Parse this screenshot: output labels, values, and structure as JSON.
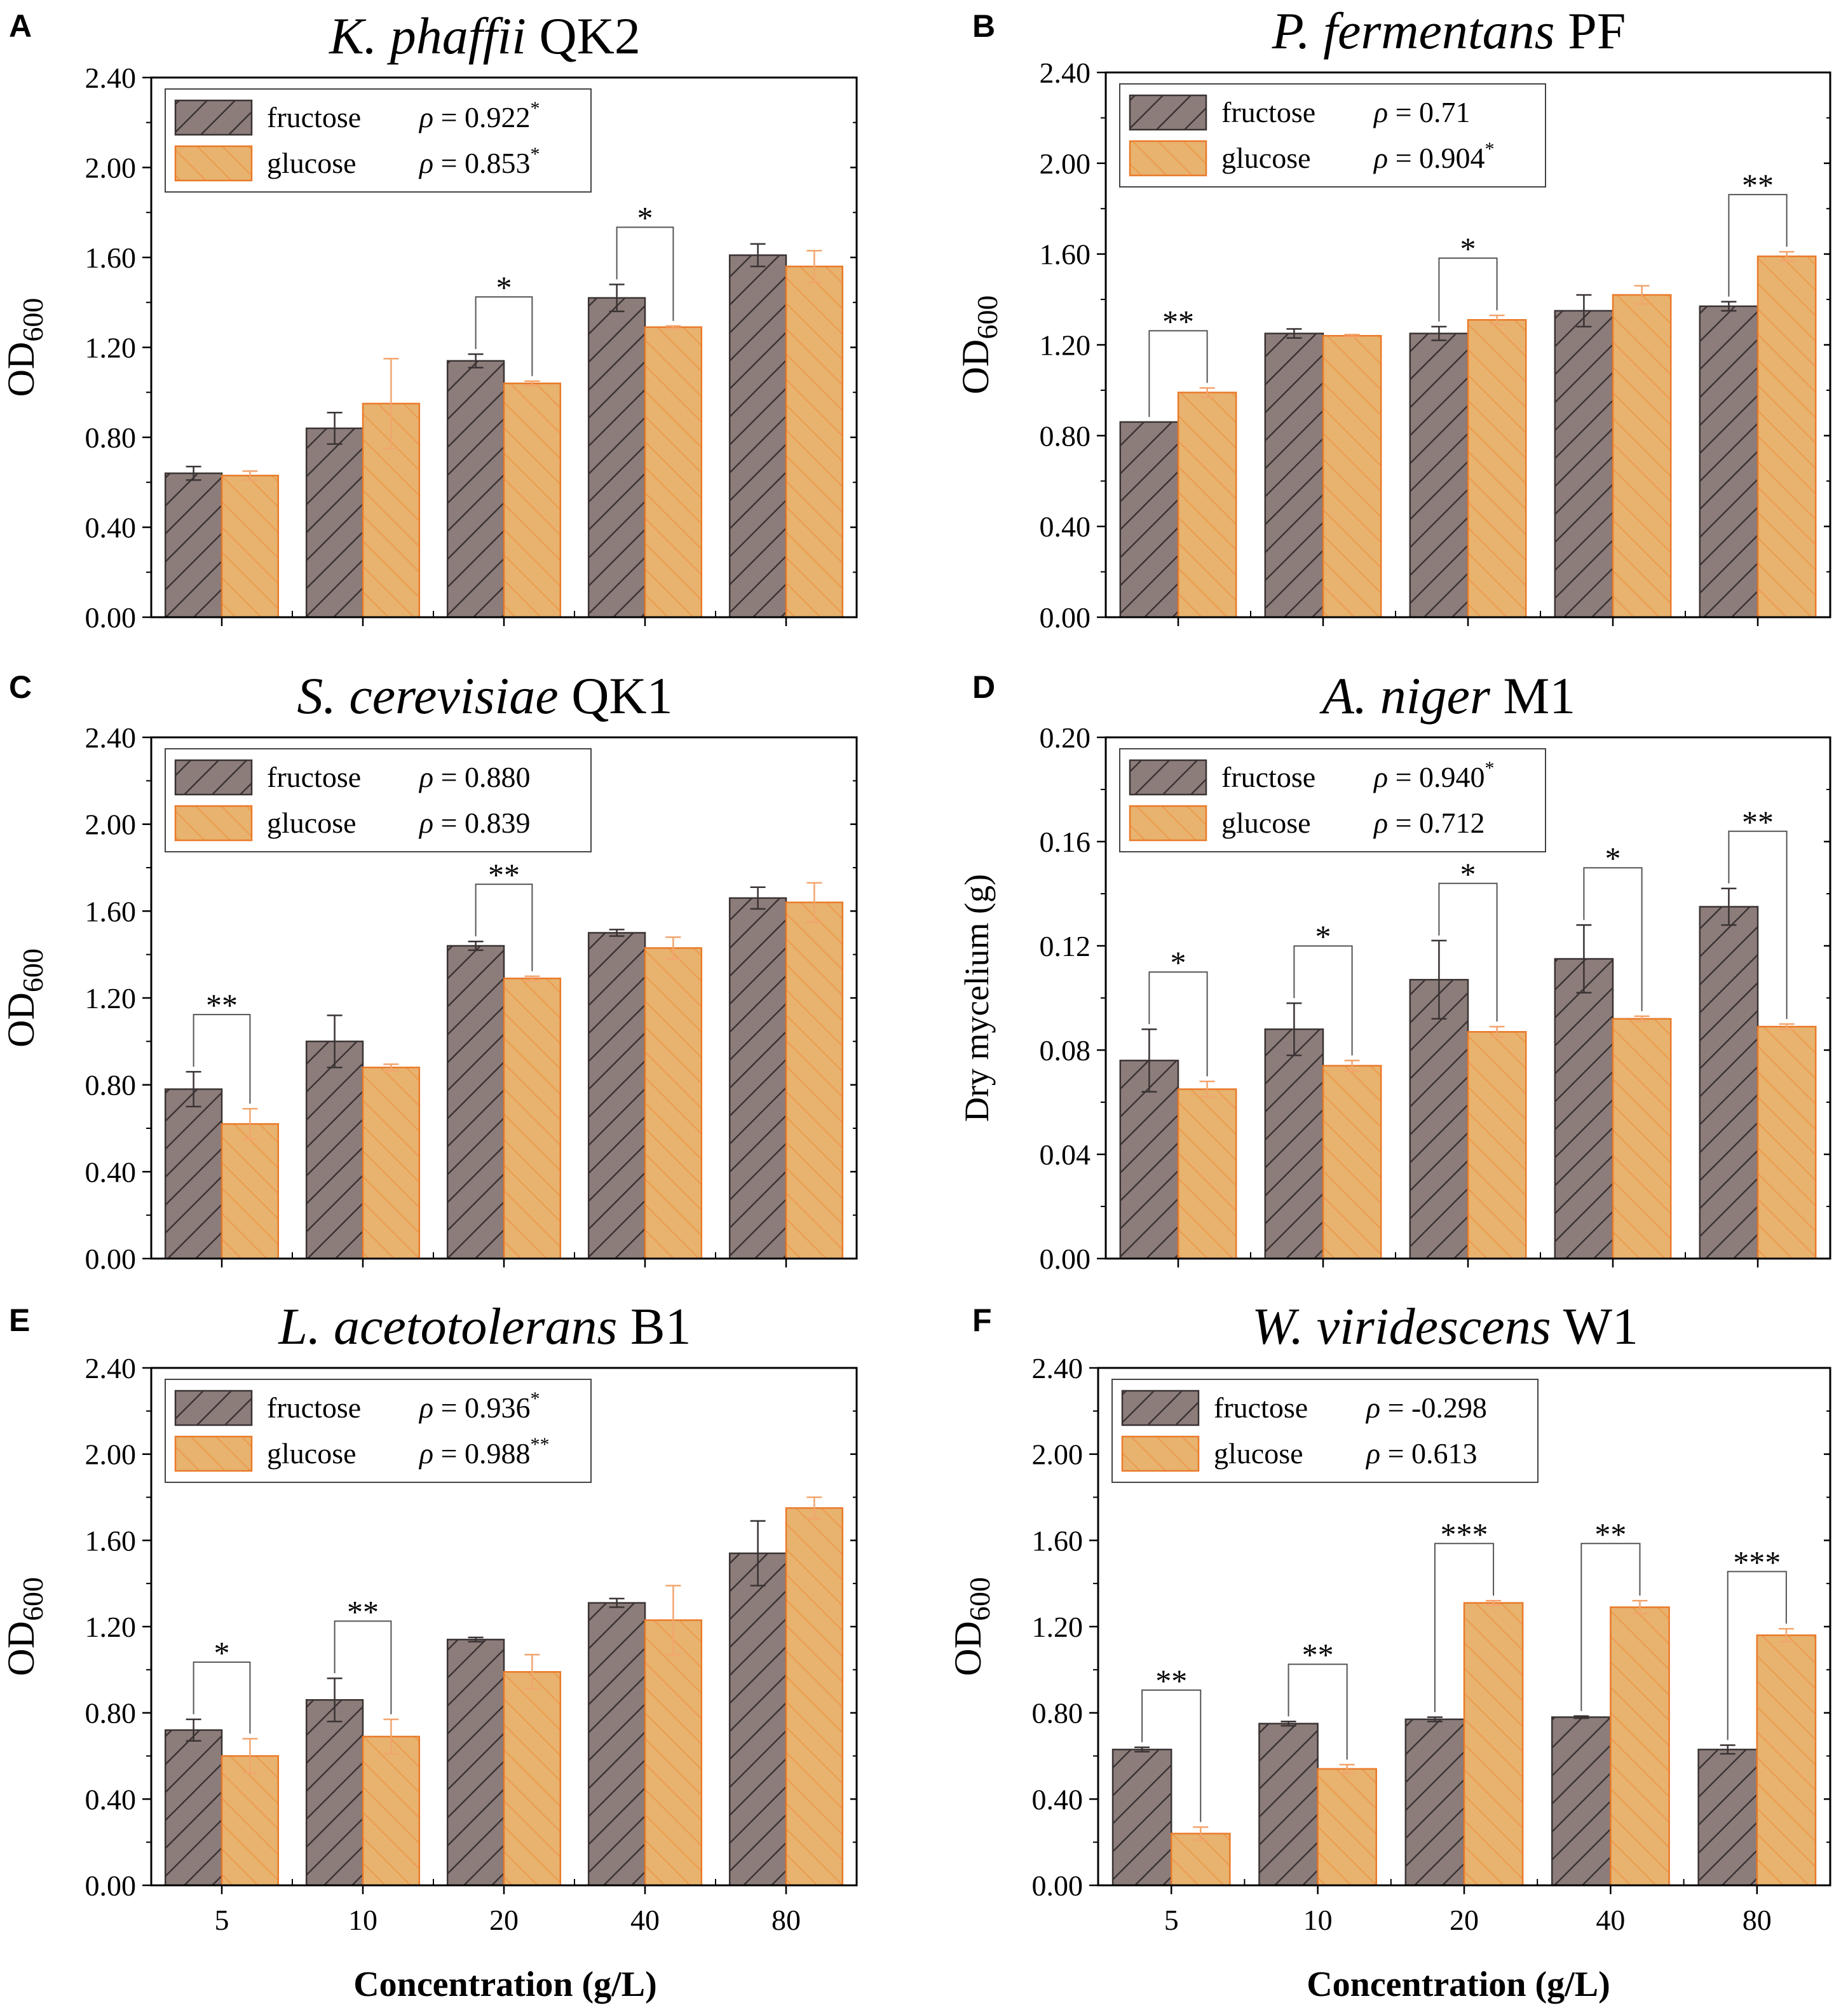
{
  "figure": {
    "xlabel": "Concentration (g/L)",
    "categories": [
      "5",
      "10",
      "20",
      "40",
      "80"
    ],
    "colors": {
      "fructose_fill": "#8C7D7B",
      "fructose_stroke": "#3A3333",
      "glucose_fill": "#E7B36F",
      "glucose_stroke": "#EA7A2A",
      "glucose_error": "#F2A56E"
    }
  },
  "chart_data": [
    {
      "type": "bar",
      "panel": "A",
      "title_italic": "K. phaffii",
      "title_plain": "QK2",
      "ylabel": "OD",
      "ylabel_sub": "600",
      "ylim": [
        0,
        2.4
      ],
      "yticks": [
        "0.00",
        "0.40",
        "0.80",
        "1.20",
        "1.60",
        "2.00",
        "2.40"
      ],
      "categories": [
        "5",
        "10",
        "20",
        "40",
        "80"
      ],
      "series": [
        {
          "name": "fructose",
          "rho": "0.922",
          "sig": "*",
          "values": [
            0.64,
            0.84,
            1.14,
            1.42,
            1.61
          ],
          "errors": [
            0.03,
            0.07,
            0.03,
            0.06,
            0.05
          ]
        },
        {
          "name": "glucose",
          "rho": "0.853",
          "sig": "*",
          "values": [
            0.63,
            0.95,
            1.04,
            1.29,
            1.56
          ],
          "errors": [
            0.02,
            0.2,
            0.01,
            0.005,
            0.07
          ]
        }
      ],
      "brackets": [
        {
          "category": 2,
          "label": "*"
        },
        {
          "category": 3,
          "label": "*"
        }
      ]
    },
    {
      "type": "bar",
      "panel": "B",
      "title_italic": "P. fermentans",
      "title_plain": "PF",
      "ylabel": "OD",
      "ylabel_sub": "600",
      "ylim": [
        0,
        2.4
      ],
      "yticks": [
        "0.00",
        "0.40",
        "0.80",
        "1.20",
        "1.60",
        "2.00",
        "2.40"
      ],
      "categories": [
        "5",
        "10",
        "20",
        "40",
        "80"
      ],
      "series": [
        {
          "name": "fructose",
          "rho": "0.71",
          "sig": "",
          "values": [
            0.86,
            1.25,
            1.25,
            1.35,
            1.37
          ],
          "errors": [
            0.0,
            0.02,
            0.03,
            0.07,
            0.02
          ]
        },
        {
          "name": "glucose",
          "rho": "0.904",
          "sig": "*",
          "values": [
            0.99,
            1.24,
            1.31,
            1.42,
            1.59
          ],
          "errors": [
            0.02,
            0.005,
            0.02,
            0.04,
            0.02
          ]
        }
      ],
      "brackets": [
        {
          "category": 0,
          "label": "**"
        },
        {
          "category": 2,
          "label": "*"
        },
        {
          "category": 4,
          "label": "**"
        }
      ]
    },
    {
      "type": "bar",
      "panel": "C",
      "title_italic": "S. cerevisiae",
      "title_plain": "QK1",
      "ylabel": "OD",
      "ylabel_sub": "600",
      "ylim": [
        0,
        2.4
      ],
      "yticks": [
        "0.00",
        "0.40",
        "0.80",
        "1.20",
        "1.60",
        "2.00",
        "2.40"
      ],
      "categories": [
        "5",
        "10",
        "20",
        "40",
        "80"
      ],
      "series": [
        {
          "name": "fructose",
          "rho": "0.880",
          "sig": "",
          "values": [
            0.78,
            1.0,
            1.44,
            1.5,
            1.66
          ],
          "errors": [
            0.08,
            0.12,
            0.02,
            0.015,
            0.05
          ]
        },
        {
          "name": "glucose",
          "rho": "0.839",
          "sig": "",
          "values": [
            0.62,
            0.88,
            1.29,
            1.43,
            1.64
          ],
          "errors": [
            0.07,
            0.015,
            0.01,
            0.05,
            0.09
          ]
        }
      ],
      "brackets": [
        {
          "category": 0,
          "label": "**"
        },
        {
          "category": 2,
          "label": "**"
        }
      ]
    },
    {
      "type": "bar",
      "panel": "D",
      "title_italic": "A. niger",
      "title_plain": "M1",
      "ylabel": "Dry mycelium (g)",
      "ylabel_sub": "",
      "ylim": [
        0,
        0.2
      ],
      "yticks": [
        "0.00",
        "0.04",
        "0.08",
        "0.12",
        "0.16",
        "0.20"
      ],
      "categories": [
        "5",
        "10",
        "20",
        "40",
        "80"
      ],
      "series": [
        {
          "name": "fructose",
          "rho": "0.940",
          "sig": "*",
          "values": [
            0.076,
            0.088,
            0.107,
            0.115,
            0.135
          ],
          "errors": [
            0.012,
            0.01,
            0.015,
            0.013,
            0.007
          ]
        },
        {
          "name": "glucose",
          "rho": "0.712",
          "sig": "",
          "values": [
            0.065,
            0.074,
            0.087,
            0.092,
            0.089
          ],
          "errors": [
            0.003,
            0.002,
            0.002,
            0.001,
            0.001
          ]
        }
      ],
      "brackets": [
        {
          "category": 0,
          "label": "*"
        },
        {
          "category": 1,
          "label": "*"
        },
        {
          "category": 2,
          "label": "*"
        },
        {
          "category": 3,
          "label": "*"
        },
        {
          "category": 4,
          "label": "**"
        }
      ]
    },
    {
      "type": "bar",
      "panel": "E",
      "title_italic": "L. acetotolerans",
      "title_plain": "B1",
      "ylabel": "OD",
      "ylabel_sub": "600",
      "ylim": [
        0,
        2.4
      ],
      "yticks": [
        "0.00",
        "0.40",
        "0.80",
        "1.20",
        "1.60",
        "2.00",
        "2.40"
      ],
      "categories": [
        "5",
        "10",
        "20",
        "40",
        "80"
      ],
      "series": [
        {
          "name": "fructose",
          "rho": "0.936",
          "sig": "*",
          "values": [
            0.72,
            0.86,
            1.14,
            1.31,
            1.54
          ],
          "errors": [
            0.05,
            0.1,
            0.01,
            0.02,
            0.15
          ]
        },
        {
          "name": "glucose",
          "rho": "0.988",
          "sig": "**",
          "values": [
            0.6,
            0.69,
            0.99,
            1.23,
            1.75
          ],
          "errors": [
            0.08,
            0.08,
            0.08,
            0.16,
            0.05
          ]
        }
      ],
      "brackets": [
        {
          "category": 0,
          "label": "*"
        },
        {
          "category": 1,
          "label": "**"
        }
      ]
    },
    {
      "type": "bar",
      "panel": "F",
      "title_italic": "W. viridescens",
      "title_plain": "W1",
      "ylabel": "OD",
      "ylabel_sub": "600",
      "ylim": [
        0,
        2.4
      ],
      "yticks": [
        "0.00",
        "0.40",
        "0.80",
        "1.20",
        "1.60",
        "2.00",
        "2.40"
      ],
      "categories": [
        "5",
        "10",
        "20",
        "40",
        "80"
      ],
      "series": [
        {
          "name": "fructose",
          "rho": "-0.298",
          "sig": "",
          "values": [
            0.63,
            0.75,
            0.77,
            0.78,
            0.63
          ],
          "errors": [
            0.01,
            0.01,
            0.01,
            0.005,
            0.02
          ]
        },
        {
          "name": "glucose",
          "rho": "0.613",
          "sig": "",
          "values": [
            0.24,
            0.54,
            1.31,
            1.29,
            1.16
          ],
          "errors": [
            0.03,
            0.02,
            0.01,
            0.03,
            0.03
          ]
        }
      ],
      "brackets": [
        {
          "category": 0,
          "label": "**"
        },
        {
          "category": 1,
          "label": "**"
        },
        {
          "category": 2,
          "label": "***"
        },
        {
          "category": 3,
          "label": "**"
        },
        {
          "category": 4,
          "label": "***"
        }
      ]
    }
  ]
}
